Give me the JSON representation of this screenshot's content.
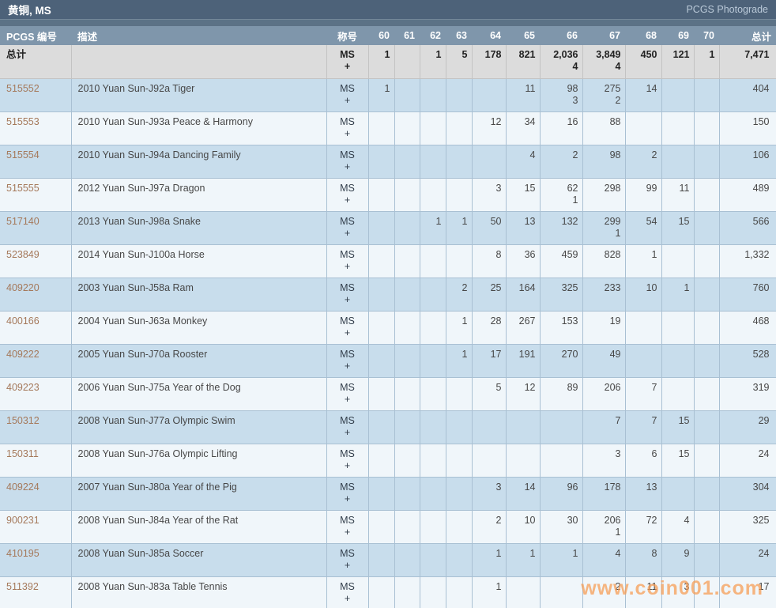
{
  "title_bar": {
    "title": "黄铜, MS",
    "photograde_link": "PCGS Photograde"
  },
  "watermark": "www.coin001.com",
  "colors": {
    "title_bar_bg": "#4d6279",
    "strip_bg": "#5c7286",
    "header_bg": "#7f96ab",
    "header_text": "#ffffff",
    "row_blue": "#c8ddec",
    "row_white": "#f0f6fa",
    "totals_bg": "#dcdcdc",
    "cell_border": "#a9c0d3",
    "totals_border": "#c3c3c3",
    "pcgs_link": "#a5795b",
    "text_dark": "#474747",
    "designation_text": "#333f4c",
    "photograde_link": "#bac9d8",
    "watermark": "#f79b51"
  },
  "table": {
    "columns": [
      "PCGS 编号",
      "描述",
      "称号",
      "60",
      "61",
      "62",
      "63",
      "64",
      "65",
      "66",
      "67",
      "68",
      "69",
      "70",
      "总计"
    ],
    "designation": {
      "line1": "MS",
      "line2": "+"
    },
    "totals": {
      "label": "总计",
      "grades": [
        [
          "1",
          ""
        ],
        [
          "",
          ""
        ],
        [
          "1",
          ""
        ],
        [
          "5",
          ""
        ],
        [
          "178",
          ""
        ],
        [
          "821",
          ""
        ],
        [
          "2,036",
          "4"
        ],
        [
          "3,849",
          "4"
        ],
        [
          "450",
          ""
        ],
        [
          "121",
          ""
        ],
        [
          "1",
          ""
        ]
      ],
      "total": "7,471"
    },
    "rows": [
      {
        "pcgs": "515552",
        "desc": "2010 Yuan Sun-J92a Tiger",
        "grades": [
          [
            "1",
            ""
          ],
          [
            "",
            ""
          ],
          [
            "",
            ""
          ],
          [
            "",
            ""
          ],
          [
            "",
            ""
          ],
          [
            "11",
            ""
          ],
          [
            "98",
            "3"
          ],
          [
            "275",
            "2"
          ],
          [
            "14",
            ""
          ],
          [
            "",
            ""
          ],
          [
            "",
            ""
          ]
        ],
        "total": "404"
      },
      {
        "pcgs": "515553",
        "desc": "2010 Yuan Sun-J93a Peace & Harmony",
        "grades": [
          [
            "",
            ""
          ],
          [
            "",
            ""
          ],
          [
            "",
            ""
          ],
          [
            "",
            ""
          ],
          [
            "12",
            ""
          ],
          [
            "34",
            ""
          ],
          [
            "16",
            ""
          ],
          [
            "88",
            ""
          ],
          [
            "",
            ""
          ],
          [
            "",
            ""
          ],
          [
            "",
            ""
          ]
        ],
        "total": "150"
      },
      {
        "pcgs": "515554",
        "desc": "2010 Yuan Sun-J94a Dancing Family",
        "grades": [
          [
            "",
            ""
          ],
          [
            "",
            ""
          ],
          [
            "",
            ""
          ],
          [
            "",
            ""
          ],
          [
            "",
            ""
          ],
          [
            "4",
            ""
          ],
          [
            "2",
            ""
          ],
          [
            "98",
            ""
          ],
          [
            "2",
            ""
          ],
          [
            "",
            ""
          ],
          [
            "",
            ""
          ]
        ],
        "total": "106"
      },
      {
        "pcgs": "515555",
        "desc": "2012 Yuan Sun-J97a Dragon",
        "grades": [
          [
            "",
            ""
          ],
          [
            "",
            ""
          ],
          [
            "",
            ""
          ],
          [
            "",
            ""
          ],
          [
            "3",
            ""
          ],
          [
            "15",
            ""
          ],
          [
            "62",
            "1"
          ],
          [
            "298",
            ""
          ],
          [
            "99",
            ""
          ],
          [
            "11",
            ""
          ],
          [
            "",
            ""
          ]
        ],
        "total": "489"
      },
      {
        "pcgs": "517140",
        "desc": "2013 Yuan Sun-J98a Snake",
        "grades": [
          [
            "",
            ""
          ],
          [
            "",
            ""
          ],
          [
            "1",
            ""
          ],
          [
            "1",
            ""
          ],
          [
            "50",
            ""
          ],
          [
            "13",
            ""
          ],
          [
            "132",
            ""
          ],
          [
            "299",
            "1"
          ],
          [
            "54",
            ""
          ],
          [
            "15",
            ""
          ],
          [
            "",
            ""
          ]
        ],
        "total": "566"
      },
      {
        "pcgs": "523849",
        "desc": "2014 Yuan Sun-J100a Horse",
        "grades": [
          [
            "",
            ""
          ],
          [
            "",
            ""
          ],
          [
            "",
            ""
          ],
          [
            "",
            ""
          ],
          [
            "8",
            ""
          ],
          [
            "36",
            ""
          ],
          [
            "459",
            ""
          ],
          [
            "828",
            ""
          ],
          [
            "1",
            ""
          ],
          [
            "",
            ""
          ],
          [
            "",
            ""
          ]
        ],
        "total": "1,332"
      },
      {
        "pcgs": "409220",
        "desc": "2003 Yuan Sun-J58a Ram",
        "grades": [
          [
            "",
            ""
          ],
          [
            "",
            ""
          ],
          [
            "",
            ""
          ],
          [
            "2",
            ""
          ],
          [
            "25",
            ""
          ],
          [
            "164",
            ""
          ],
          [
            "325",
            ""
          ],
          [
            "233",
            ""
          ],
          [
            "10",
            ""
          ],
          [
            "1",
            ""
          ],
          [
            "",
            ""
          ]
        ],
        "total": "760"
      },
      {
        "pcgs": "400166",
        "desc": "2004 Yuan Sun-J63a Monkey",
        "grades": [
          [
            "",
            ""
          ],
          [
            "",
            ""
          ],
          [
            "",
            ""
          ],
          [
            "1",
            ""
          ],
          [
            "28",
            ""
          ],
          [
            "267",
            ""
          ],
          [
            "153",
            ""
          ],
          [
            "19",
            ""
          ],
          [
            "",
            ""
          ],
          [
            "",
            ""
          ],
          [
            "",
            ""
          ]
        ],
        "total": "468"
      },
      {
        "pcgs": "409222",
        "desc": "2005 Yuan Sun-J70a Rooster",
        "grades": [
          [
            "",
            ""
          ],
          [
            "",
            ""
          ],
          [
            "",
            ""
          ],
          [
            "1",
            ""
          ],
          [
            "17",
            ""
          ],
          [
            "191",
            ""
          ],
          [
            "270",
            ""
          ],
          [
            "49",
            ""
          ],
          [
            "",
            ""
          ],
          [
            "",
            ""
          ],
          [
            "",
            ""
          ]
        ],
        "total": "528"
      },
      {
        "pcgs": "409223",
        "desc": "2006 Yuan Sun-J75a Year of the Dog",
        "grades": [
          [
            "",
            ""
          ],
          [
            "",
            ""
          ],
          [
            "",
            ""
          ],
          [
            "",
            ""
          ],
          [
            "5",
            ""
          ],
          [
            "12",
            ""
          ],
          [
            "89",
            ""
          ],
          [
            "206",
            ""
          ],
          [
            "7",
            ""
          ],
          [
            "",
            ""
          ],
          [
            "",
            ""
          ]
        ],
        "total": "319"
      },
      {
        "pcgs": "150312",
        "desc": "2008 Yuan Sun-J77a Olympic Swim",
        "grades": [
          [
            "",
            ""
          ],
          [
            "",
            ""
          ],
          [
            "",
            ""
          ],
          [
            "",
            ""
          ],
          [
            "",
            ""
          ],
          [
            "",
            ""
          ],
          [
            "",
            ""
          ],
          [
            "7",
            ""
          ],
          [
            "7",
            ""
          ],
          [
            "15",
            ""
          ],
          [
            "",
            ""
          ]
        ],
        "total": "29"
      },
      {
        "pcgs": "150311",
        "desc": "2008 Yuan Sun-J76a Olympic Lifting",
        "grades": [
          [
            "",
            ""
          ],
          [
            "",
            ""
          ],
          [
            "",
            ""
          ],
          [
            "",
            ""
          ],
          [
            "",
            ""
          ],
          [
            "",
            ""
          ],
          [
            "",
            ""
          ],
          [
            "3",
            ""
          ],
          [
            "6",
            ""
          ],
          [
            "15",
            ""
          ],
          [
            "",
            ""
          ]
        ],
        "total": "24"
      },
      {
        "pcgs": "409224",
        "desc": "2007 Yuan Sun-J80a Year of the Pig",
        "grades": [
          [
            "",
            ""
          ],
          [
            "",
            ""
          ],
          [
            "",
            ""
          ],
          [
            "",
            ""
          ],
          [
            "3",
            ""
          ],
          [
            "14",
            ""
          ],
          [
            "96",
            ""
          ],
          [
            "178",
            ""
          ],
          [
            "13",
            ""
          ],
          [
            "",
            ""
          ],
          [
            "",
            ""
          ]
        ],
        "total": "304"
      },
      {
        "pcgs": "900231",
        "desc": "2008 Yuan Sun-J84a Year of the Rat",
        "grades": [
          [
            "",
            ""
          ],
          [
            "",
            ""
          ],
          [
            "",
            ""
          ],
          [
            "",
            ""
          ],
          [
            "2",
            ""
          ],
          [
            "10",
            ""
          ],
          [
            "30",
            ""
          ],
          [
            "206",
            "1"
          ],
          [
            "72",
            ""
          ],
          [
            "4",
            ""
          ],
          [
            "",
            ""
          ]
        ],
        "total": "325"
      },
      {
        "pcgs": "410195",
        "desc": "2008 Yuan Sun-J85a Soccer",
        "grades": [
          [
            "",
            ""
          ],
          [
            "",
            ""
          ],
          [
            "",
            ""
          ],
          [
            "",
            ""
          ],
          [
            "1",
            ""
          ],
          [
            "1",
            ""
          ],
          [
            "1",
            ""
          ],
          [
            "4",
            ""
          ],
          [
            "8",
            ""
          ],
          [
            "9",
            ""
          ],
          [
            "",
            ""
          ]
        ],
        "total": "24"
      },
      {
        "pcgs": "511392",
        "desc": "2008 Yuan Sun-J83a Table Tennis",
        "grades": [
          [
            "",
            ""
          ],
          [
            "",
            ""
          ],
          [
            "",
            ""
          ],
          [
            "",
            ""
          ],
          [
            "1",
            ""
          ],
          [
            "",
            ""
          ],
          [
            "",
            ""
          ],
          [
            "2",
            ""
          ],
          [
            "11",
            ""
          ],
          [
            "3",
            ""
          ],
          [
            "",
            ""
          ]
        ],
        "total": "17"
      }
    ]
  }
}
